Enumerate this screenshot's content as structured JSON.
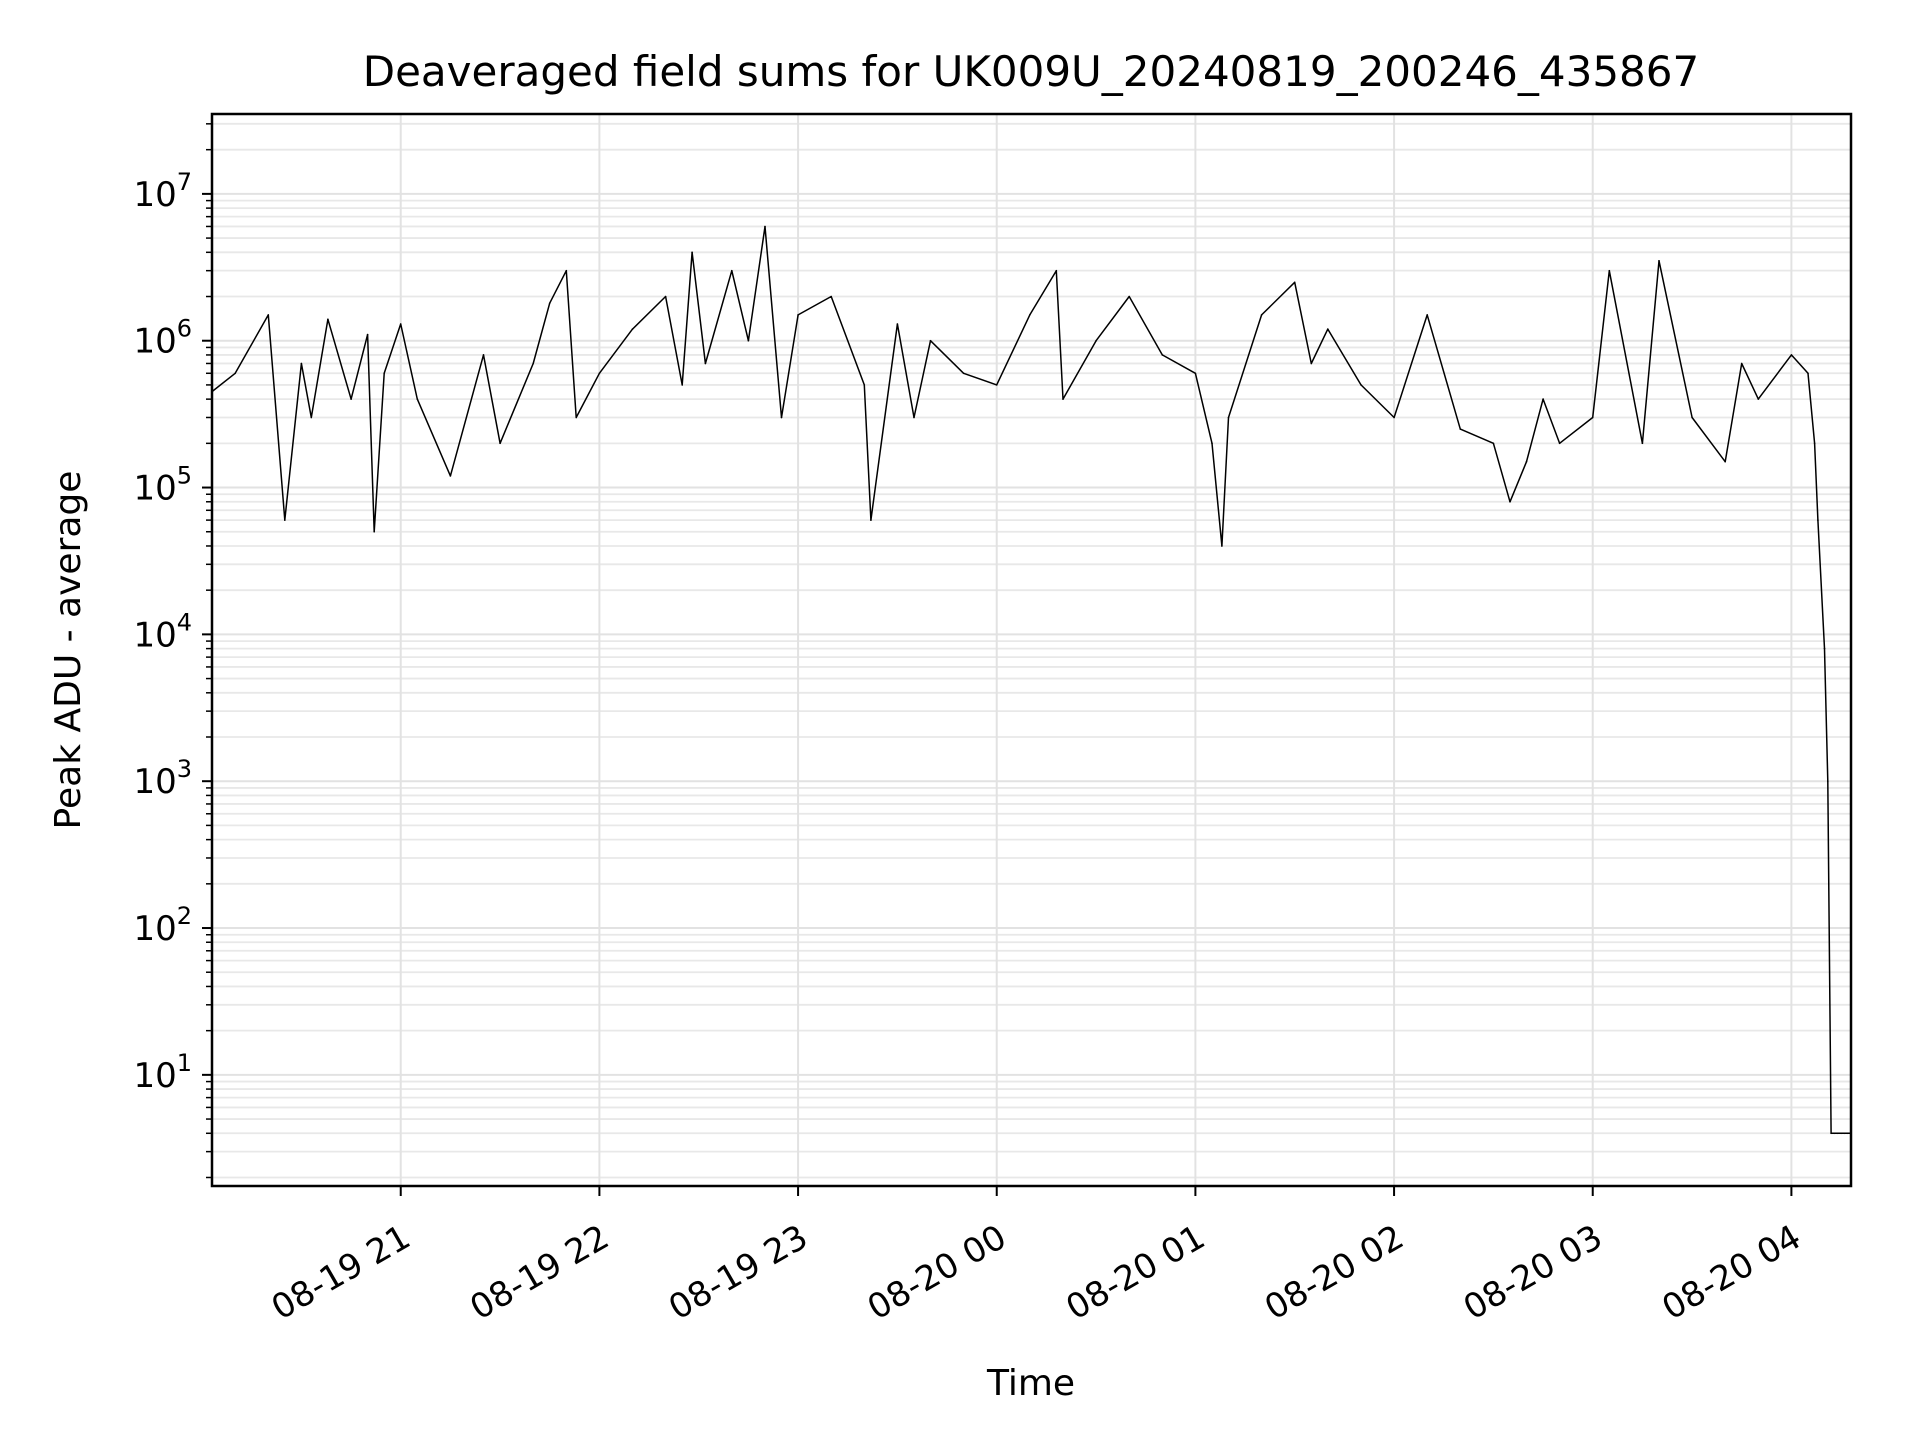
{
  "chart_data": {
    "type": "line",
    "title": "Deaveraged field sums for UK009U_20240819_200246_435867",
    "xlabel": "Time",
    "ylabel": "Peak ADU - average",
    "y_scale": "log",
    "x_type": "datetime",
    "xlim": [
      "2024-08-19 20:03",
      "2024-08-20 04:18"
    ],
    "ylim": [
      1.75,
      35000000
    ],
    "grid": true,
    "grid_minor": true,
    "legend": "none",
    "x_ticks": [
      {
        "t": "2024-08-19 21:00",
        "label": "08-19 21"
      },
      {
        "t": "2024-08-19 22:00",
        "label": "08-19 22"
      },
      {
        "t": "2024-08-19 23:00",
        "label": "08-19 23"
      },
      {
        "t": "2024-08-20 00:00",
        "label": "08-20 00"
      },
      {
        "t": "2024-08-20 01:00",
        "label": "08-20 01"
      },
      {
        "t": "2024-08-20 02:00",
        "label": "08-20 02"
      },
      {
        "t": "2024-08-20 03:00",
        "label": "08-20 03"
      },
      {
        "t": "2024-08-20 04:00",
        "label": "08-20 04"
      }
    ],
    "y_ticks": [
      {
        "value": 10,
        "base": "10",
        "exp": "1"
      },
      {
        "value": 100,
        "base": "10",
        "exp": "2"
      },
      {
        "value": 1000,
        "base": "10",
        "exp": "3"
      },
      {
        "value": 10000,
        "base": "10",
        "exp": "4"
      },
      {
        "value": 100000,
        "base": "10",
        "exp": "5"
      },
      {
        "value": 1000000,
        "base": "10",
        "exp": "6"
      },
      {
        "value": 10000000,
        "base": "10",
        "exp": "7"
      }
    ],
    "series": [
      {
        "color": "#000000",
        "x": [
          "2024-08-19 20:03",
          "2024-08-19 20:10",
          "2024-08-19 20:20",
          "2024-08-19 20:25",
          "2024-08-19 20:30",
          "2024-08-19 20:33",
          "2024-08-19 20:38",
          "2024-08-19 20:45",
          "2024-08-19 20:50",
          "2024-08-19 20:52",
          "2024-08-19 20:55",
          "2024-08-19 21:00",
          "2024-08-19 21:05",
          "2024-08-19 21:15",
          "2024-08-19 21:25",
          "2024-08-19 21:30",
          "2024-08-19 21:40",
          "2024-08-19 21:45",
          "2024-08-19 21:50",
          "2024-08-19 21:53",
          "2024-08-19 22:00",
          "2024-08-19 22:10",
          "2024-08-19 22:20",
          "2024-08-19 22:25",
          "2024-08-19 22:28",
          "2024-08-19 22:32",
          "2024-08-19 22:40",
          "2024-08-19 22:45",
          "2024-08-19 22:50",
          "2024-08-19 22:55",
          "2024-08-19 23:00",
          "2024-08-19 23:10",
          "2024-08-19 23:20",
          "2024-08-19 23:22",
          "2024-08-19 23:30",
          "2024-08-19 23:35",
          "2024-08-19 23:40",
          "2024-08-19 23:50",
          "2024-08-20 00:00",
          "2024-08-20 00:10",
          "2024-08-20 00:18",
          "2024-08-20 00:20",
          "2024-08-20 00:30",
          "2024-08-20 00:40",
          "2024-08-20 00:50",
          "2024-08-20 01:00",
          "2024-08-20 01:05",
          "2024-08-20 01:08",
          "2024-08-20 01:10",
          "2024-08-20 01:20",
          "2024-08-20 01:30",
          "2024-08-20 01:35",
          "2024-08-20 01:40",
          "2024-08-20 01:50",
          "2024-08-20 02:00",
          "2024-08-20 02:10",
          "2024-08-20 02:20",
          "2024-08-20 02:30",
          "2024-08-20 02:35",
          "2024-08-20 02:40",
          "2024-08-20 02:45",
          "2024-08-20 02:50",
          "2024-08-20 03:00",
          "2024-08-20 03:05",
          "2024-08-20 03:15",
          "2024-08-20 03:20",
          "2024-08-20 03:30",
          "2024-08-20 03:40",
          "2024-08-20 03:45",
          "2024-08-20 03:50",
          "2024-08-20 04:00",
          "2024-08-20 04:05",
          "2024-08-20 04:07",
          "2024-08-20 04:08",
          "2024-08-20 04:10",
          "2024-08-20 04:11",
          "2024-08-20 04:12",
          "2024-08-20 04:13",
          "2024-08-20 04:14",
          "2024-08-20 04:15",
          "2024-08-20 04:16",
          "2024-08-20 04:17",
          "2024-08-20 04:18"
        ],
        "y": [
          450000,
          600000,
          1500000,
          60000,
          700000,
          300000,
          1400000,
          400000,
          1100000,
          50000,
          600000,
          1300000,
          400000,
          120000,
          800000,
          200000,
          700000,
          1800000,
          3000000,
          300000,
          600000,
          1200000,
          2000000,
          500000,
          4000000,
          700000,
          3000000,
          1000000,
          6000000,
          300000,
          1500000,
          2000000,
          500000,
          60000,
          1300000,
          300000,
          1000000,
          600000,
          500000,
          1500000,
          3000000,
          400000,
          1000000,
          2000000,
          800000,
          600000,
          200000,
          40000,
          300000,
          1500000,
          2500000,
          700000,
          1200000,
          500000,
          300000,
          1500000,
          250000,
          200000,
          80000,
          150000,
          400000,
          200000,
          300000,
          3000000,
          200000,
          3500000,
          300000,
          150000,
          700000,
          400000,
          800000,
          600000,
          200000,
          60000,
          8000,
          1000,
          4,
          4,
          4,
          4,
          4,
          4,
          4
        ]
      }
    ]
  }
}
